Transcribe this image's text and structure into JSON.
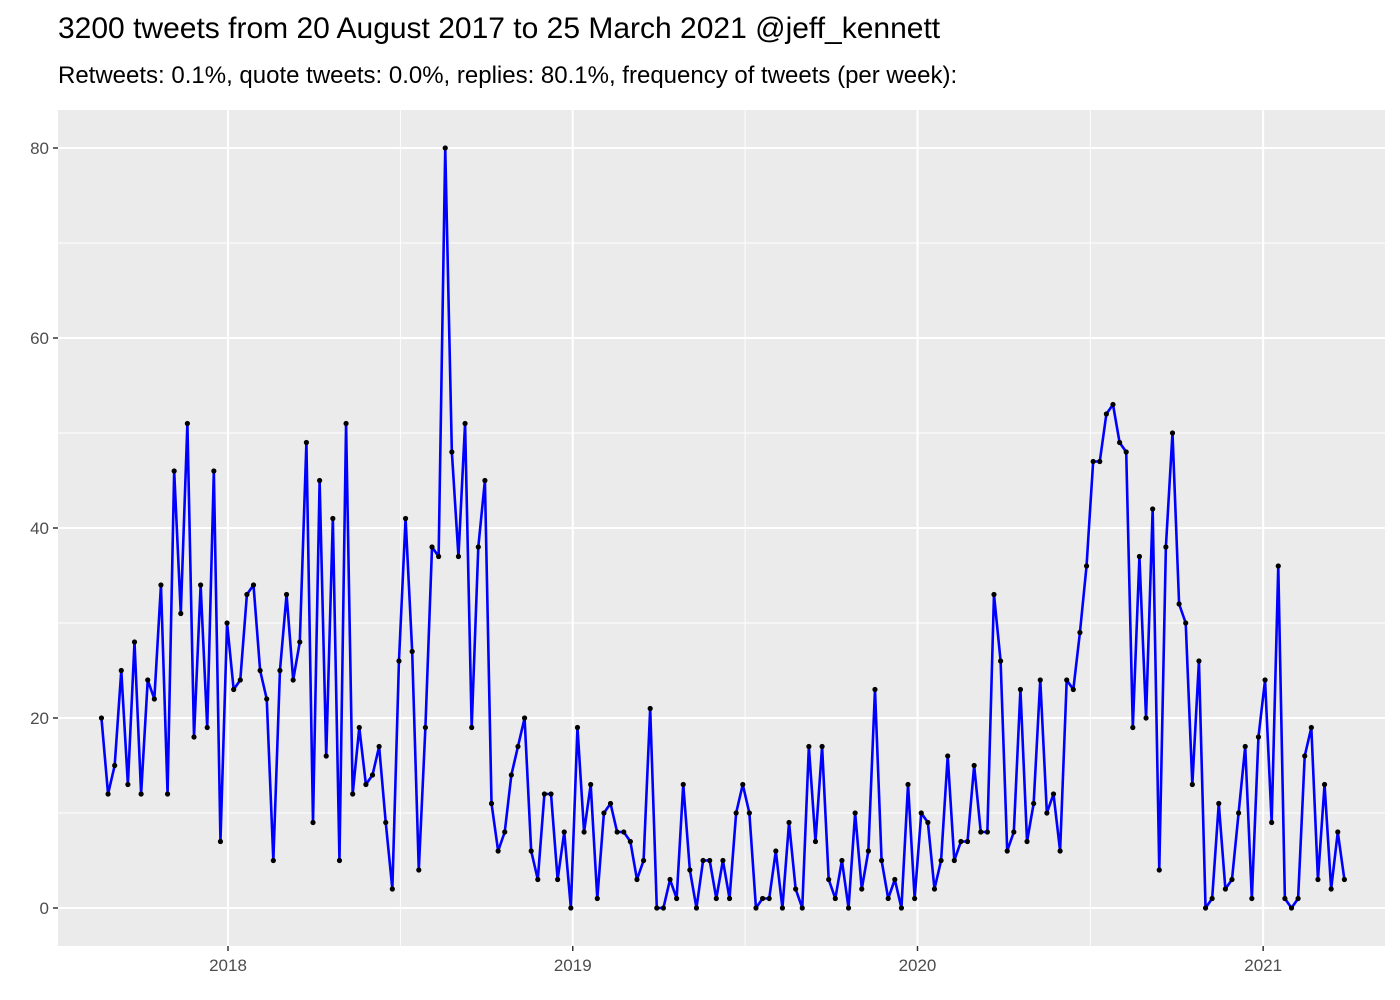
{
  "title": "3200 tweets from 20 August 2017 to 25 March 2021 @jeff_kennett",
  "subtitle": "Retweets: 0.1%, quote tweets: 0.0%, replies: 80.1%, frequency of tweets (per week):",
  "colors": {
    "panel": "#ebebeb",
    "grid": "#ffffff",
    "line": "#0000ff",
    "point": "#000000",
    "tick": "#4d4d4d"
  },
  "chart_data": {
    "type": "line",
    "title": "3200 tweets from 20 August 2017 to 25 March 2021 @jeff_kennett",
    "subtitle": "Retweets: 0.1%, quote tweets: 0.0%, replies: 80.1%, frequency of tweets (per week):",
    "xlabel": "",
    "ylabel": "",
    "x_start_date": "2017-08-20",
    "x_interval_days": 7,
    "xlim": [
      "2017-07-05",
      "2021-05-10"
    ],
    "ylim": [
      -4,
      84
    ],
    "x_ticks": [
      {
        "date": "2018-01-01",
        "label": "2018"
      },
      {
        "date": "2019-01-01",
        "label": "2019"
      },
      {
        "date": "2020-01-01",
        "label": "2020"
      },
      {
        "date": "2021-01-01",
        "label": "2021"
      }
    ],
    "y_ticks": [
      0,
      20,
      40,
      60,
      80
    ],
    "grid": true,
    "series": [
      {
        "values": [
          20,
          12,
          15,
          25,
          13,
          28,
          12,
          24,
          22,
          34,
          12,
          46,
          31,
          51,
          18,
          34,
          19,
          46,
          7,
          30,
          23,
          24,
          33,
          34,
          25,
          22,
          5,
          25,
          33,
          24,
          28,
          49,
          9,
          45,
          16,
          41,
          5,
          51,
          12,
          19,
          13,
          14,
          17,
          9,
          2,
          26,
          41,
          27,
          4,
          19,
          38,
          37,
          80,
          48,
          37,
          51,
          19,
          38,
          45,
          11,
          6,
          8,
          14,
          17,
          20,
          6,
          3,
          12,
          12,
          3,
          8,
          0,
          19,
          8,
          13,
          1,
          10,
          11,
          8,
          8,
          7,
          3,
          5,
          21,
          0,
          0,
          3,
          1,
          13,
          4,
          0,
          5,
          5,
          1,
          5,
          1,
          10,
          13,
          10,
          0,
          1,
          1,
          6,
          0,
          9,
          2,
          0,
          17,
          7,
          17,
          3,
          1,
          5,
          0,
          10,
          2,
          6,
          23,
          5,
          1,
          3,
          0,
          13,
          1,
          10,
          9,
          2,
          5,
          16,
          5,
          7,
          7,
          15,
          8,
          8,
          33,
          26,
          6,
          8,
          23,
          7,
          11,
          24,
          10,
          12,
          6,
          24,
          23,
          29,
          36,
          47,
          47,
          52,
          53,
          49,
          48,
          19,
          37,
          20,
          42,
          4,
          38,
          50,
          32,
          30,
          13,
          26,
          0,
          1,
          11,
          2,
          3,
          10,
          17,
          1,
          18,
          24,
          9,
          36,
          1,
          0,
          1,
          16,
          19,
          3,
          13,
          2,
          8,
          3
        ]
      }
    ]
  }
}
